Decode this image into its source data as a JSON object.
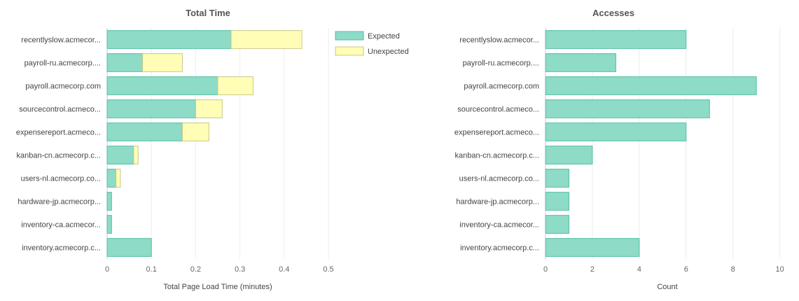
{
  "chart_data": [
    {
      "type": "bar",
      "orientation": "horizontal",
      "stacked": true,
      "title": "Total Time",
      "xlabel": "Total Page Load Time (minutes)",
      "ylabel": "",
      "xlim": [
        0,
        0.5
      ],
      "xticks": [
        "0",
        "0.1",
        "0.2",
        "0.3",
        "0.4",
        "0.5"
      ],
      "xtick_values": [
        0,
        0.1,
        0.2,
        0.3,
        0.4,
        0.5
      ],
      "grid": true,
      "legend_position": "top-right",
      "categories": [
        "recentlyslow.acmecor...",
        "payroll-ru.acmecorp....",
        "payroll.acmecorp.com",
        "sourcecontrol.acmeco...",
        "expensereport.acmeco...",
        "kanban-cn.acmecorp.c...",
        "users-nl.acmecorp.co...",
        "hardware-jp.acmecorp...",
        "inventory-ca.acmecor...",
        "inventory.acmecorp.c..."
      ],
      "series": [
        {
          "name": "Expected",
          "color": "#8edbc8",
          "stroke": "#52bfa4",
          "values": [
            0.28,
            0.08,
            0.25,
            0.2,
            0.17,
            0.06,
            0.02,
            0.01,
            0.01,
            0.1
          ]
        },
        {
          "name": "Unexpected",
          "color": "#fffdb6",
          "stroke": "#c8c98a",
          "values": [
            0.16,
            0.09,
            0.08,
            0.06,
            0.06,
            0.01,
            0.01,
            0,
            0,
            0
          ]
        }
      ]
    },
    {
      "type": "bar",
      "orientation": "horizontal",
      "stacked": false,
      "title": "Accesses",
      "xlabel": "Count",
      "ylabel": "",
      "xlim": [
        0,
        10.4
      ],
      "xticks": [
        "0",
        "2",
        "4",
        "6",
        "8",
        "10"
      ],
      "xtick_values": [
        0,
        2,
        4,
        6,
        8,
        10
      ],
      "grid": true,
      "categories": [
        "recentlyslow.acmecor...",
        "payroll-ru.acmecorp....",
        "payroll.acmecorp.com",
        "sourcecontrol.acmeco...",
        "expensereport.acmeco...",
        "kanban-cn.acmecorp.c...",
        "users-nl.acmecorp.co...",
        "hardware-jp.acmecorp...",
        "inventory-ca.acmecor...",
        "inventory.acmecorp.c..."
      ],
      "series": [
        {
          "color": "#8edbc8",
          "stroke": "#52bfa4",
          "values": [
            6,
            3,
            9,
            7,
            6,
            2,
            1,
            1,
            1,
            4
          ]
        }
      ]
    }
  ]
}
